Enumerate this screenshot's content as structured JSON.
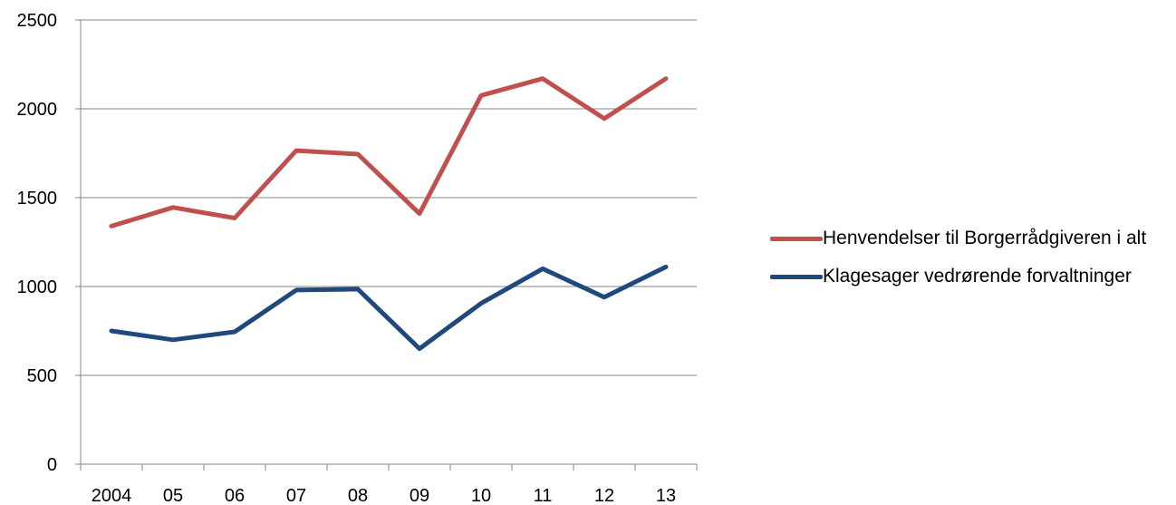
{
  "chart_data": {
    "type": "line",
    "categories": [
      "2004",
      "05",
      "06",
      "07",
      "08",
      "09",
      "10",
      "11",
      "12",
      "13"
    ],
    "series": [
      {
        "name": "Henvendelser til Borgerrådgiveren i alt",
        "color": "#c0504d",
        "values": [
          1340,
          1445,
          1385,
          1765,
          1745,
          1410,
          2075,
          2170,
          1945,
          2170
        ]
      },
      {
        "name": "Klagesager vedrørende forvaltninger",
        "color": "#1f497d",
        "values": [
          750,
          700,
          745,
          980,
          985,
          650,
          905,
          1100,
          940,
          1110
        ]
      }
    ],
    "ylim": [
      0,
      2500
    ],
    "yticks": [
      "0",
      "500",
      "1000",
      "1500",
      "2000",
      "2500"
    ],
    "grid": true,
    "legend_position": "right"
  }
}
